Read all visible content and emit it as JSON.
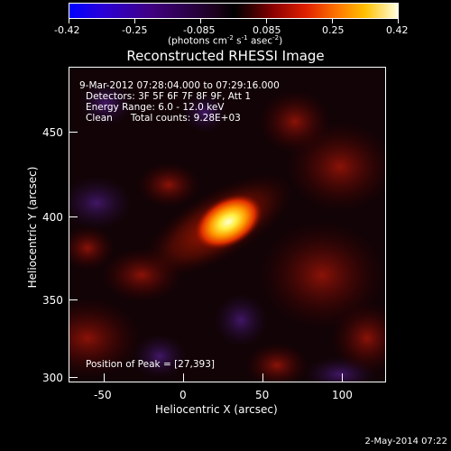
{
  "colorbar": {
    "ticks": [
      "-0.42",
      "-0.25",
      "-0.085",
      "0.085",
      "0.25",
      "0.42"
    ],
    "unit_label": "(photons cm",
    "unit_exp1": "-2",
    "unit_mid": " s",
    "unit_exp2": "-1",
    "unit_tail": " asec",
    "unit_exp3": "-2",
    "unit_close": ")"
  },
  "title": "Reconstructed RHESSI Image",
  "annotations": {
    "time_range": "9-Mar-2012 07:28:04.000 to 07:29:16.000",
    "detectors": "Detectors: 3F 5F 6F 7F 8F 9F, Att 1",
    "energy": "Energy Range: 6.0 - 12.0 keV",
    "clean": "Clean      Total counts: 9.28E+03",
    "peak": "Position of Peak = [27,393]"
  },
  "axes": {
    "xlabel": "Heliocentric X (arcsec)",
    "ylabel": "Heliocentric Y (arcsec)",
    "xticks": [
      "-50",
      "0",
      "50",
      "100"
    ],
    "yticks": [
      "450",
      "400",
      "350",
      "300"
    ]
  },
  "footer": {
    "date": "2-May-2014 07:22"
  },
  "colors": {
    "background": "#000000",
    "peak": "#ffff80",
    "hot": "#ff6a00",
    "warm": "#a01010",
    "cool": "#3a1660"
  }
}
